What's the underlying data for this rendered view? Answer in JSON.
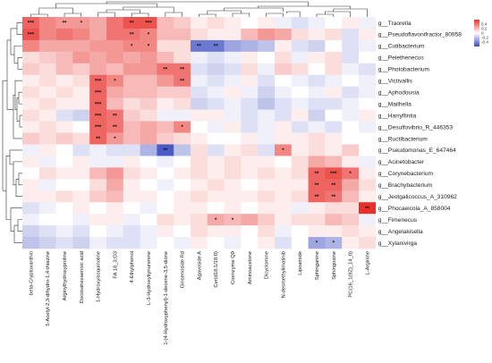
{
  "chart_data": {
    "type": "heatmap",
    "title": "",
    "xlabel": "",
    "ylabel": "",
    "rows": [
      "g__Traorella",
      "g__Pseudoflavonifractor_80958",
      "g__Cutibacterium",
      "g__Pelethenecus",
      "g__Photobacterium",
      "g__Victivallis",
      "g__Aphodousia",
      "g__Mailhella",
      "g__Harryflintia",
      "g__Desulfovibrio_R_446353",
      "g__Ructibacterium",
      "g__Pseudomonas_E_647464",
      "g__Acinetobacter",
      "g__Corynebacterium",
      "g__Brachybacterium",
      "g__Jeotgalicoccus_A_310962",
      "g__Phocaeicola_A_858004",
      "g__Fimenecus",
      "g__Angelakisella",
      "g__Xylanivirga"
    ],
    "columns": [
      "beta-Cryptoxanthin",
      "5-Acetyl-2,3-dihydro-1,4-thiazine",
      "Arginylhydroxyproline",
      "Docosahexaenoic acid",
      "1-Hydroxyisoquinoline",
      "FA 18_3;O3",
      "4-Ethylphenol",
      "L-3-Hydroxykynurenine",
      "1-(4-Hydroxyphenyl)-1-decene-3,5-dione",
      "Ginsenoside Rd",
      "Agavoside A",
      "Cer(d18:1/18:0)",
      "Coenzyme Q9",
      "Aminoacetone",
      "Dicyclomine",
      "N-desmethylimatinib",
      "Lipoamide",
      "Sphinganine",
      "Sphingosine",
      "PC(16_1(9Z)_14_0)",
      "L-Arginine"
    ],
    "values": [
      [
        0.45,
        0.35,
        0.3,
        0.3,
        0.25,
        0.4,
        0.5,
        0.5,
        0.2,
        0.15,
        0.05,
        0.1,
        0.05,
        0.0,
        0.05,
        -0.05,
        -0.1,
        -0.05,
        0.0,
        0.05,
        -0.05
      ],
      [
        0.5,
        0.35,
        0.4,
        0.35,
        0.25,
        0.4,
        0.4,
        0.35,
        0.2,
        0.2,
        0.1,
        0.05,
        0.05,
        0.2,
        0.3,
        0.25,
        0.1,
        0.05,
        0.1,
        -0.1,
        0.05
      ],
      [
        0.35,
        0.25,
        0.25,
        0.25,
        0.3,
        0.3,
        0.35,
        0.35,
        0.1,
        0.1,
        -0.45,
        -0.45,
        -0.3,
        -0.25,
        -0.2,
        0.05,
        -0.1,
        -0.15,
        0.0,
        -0.1,
        -0.05
      ],
      [
        0.1,
        0.15,
        0.2,
        0.3,
        0.25,
        0.3,
        0.25,
        0.3,
        0.2,
        0.1,
        -0.05,
        -0.1,
        -0.05,
        0.05,
        0.0,
        0.1,
        -0.05,
        0.05,
        0.1,
        -0.1,
        0.0
      ],
      [
        0.15,
        0.1,
        0.2,
        0.15,
        0.25,
        0.2,
        0.3,
        0.3,
        0.4,
        0.4,
        -0.1,
        -0.15,
        -0.1,
        0.1,
        -0.05,
        0.15,
        0.1,
        0.0,
        0.1,
        -0.05,
        -0.1
      ],
      [
        0.05,
        0.1,
        0.05,
        0.1,
        0.45,
        0.35,
        0.2,
        0.2,
        0.3,
        0.4,
        -0.05,
        -0.1,
        -0.05,
        0.05,
        -0.1,
        0.0,
        -0.05,
        -0.1,
        -0.05,
        0.0,
        -0.05
      ],
      [
        0.1,
        0.05,
        0.1,
        0.05,
        0.45,
        0.25,
        0.2,
        0.2,
        0.15,
        0.15,
        -0.1,
        -0.05,
        0.05,
        -0.05,
        -0.15,
        -0.05,
        0.0,
        -0.05,
        0.05,
        -0.1,
        -0.05
      ],
      [
        0.05,
        0.1,
        0.05,
        0.05,
        0.45,
        0.2,
        0.1,
        0.15,
        0.05,
        0.1,
        -0.15,
        -0.1,
        -0.05,
        -0.1,
        -0.2,
        -0.1,
        -0.05,
        -0.1,
        -0.1,
        -0.05,
        0.0
      ],
      [
        0.1,
        0.05,
        -0.1,
        -0.15,
        0.45,
        0.4,
        0.15,
        0.1,
        -0.05,
        -0.05,
        0.05,
        0.05,
        -0.05,
        -0.1,
        -0.05,
        -0.1,
        0.05,
        -0.15,
        0.0,
        -0.05,
        0.05
      ],
      [
        0.05,
        0.1,
        0.05,
        0.0,
        0.45,
        0.4,
        0.2,
        0.25,
        0.2,
        0.35,
        0.0,
        -0.05,
        0.05,
        -0.1,
        -0.05,
        0.05,
        -0.1,
        -0.05,
        -0.1,
        0.0,
        -0.05
      ],
      [
        0.15,
        0.1,
        0.15,
        0.1,
        0.45,
        0.3,
        0.2,
        0.25,
        0.15,
        0.1,
        0.05,
        0.0,
        0.0,
        0.05,
        -0.05,
        0.05,
        0.05,
        0.1,
        0.05,
        0.0,
        0.0
      ],
      [
        -0.05,
        0.05,
        0.0,
        -0.1,
        -0.05,
        -0.1,
        -0.1,
        -0.25,
        -0.55,
        -0.2,
        0.1,
        -0.1,
        0.05,
        0.1,
        -0.1,
        0.35,
        0.05,
        0.1,
        0.05,
        0.15,
        0.0
      ],
      [
        0.05,
        -0.05,
        0.0,
        0.05,
        -0.05,
        -0.05,
        0.05,
        0.0,
        -0.05,
        0.0,
        0.1,
        0.05,
        0.1,
        0.05,
        0.05,
        0.0,
        0.1,
        0.25,
        0.2,
        0.05,
        -0.05
      ],
      [
        0.0,
        0.1,
        0.05,
        0.05,
        0.2,
        0.3,
        0.1,
        0.05,
        0.0,
        0.05,
        0.1,
        0.05,
        0.1,
        0.05,
        0.1,
        0.05,
        0.1,
        0.45,
        0.5,
        0.4,
        0.05
      ],
      [
        0.05,
        -0.05,
        0.0,
        0.0,
        0.1,
        0.25,
        0.05,
        0.0,
        -0.05,
        0.0,
        0.05,
        0.1,
        0.05,
        0.0,
        0.05,
        0.05,
        0.05,
        0.45,
        0.45,
        0.25,
        0.1
      ],
      [
        0.05,
        0.05,
        0.1,
        0.05,
        0.15,
        0.2,
        0.05,
        0.05,
        0.0,
        0.05,
        0.1,
        0.05,
        0.05,
        0.05,
        0.1,
        0.05,
        0.1,
        0.45,
        0.4,
        0.2,
        0.05
      ],
      [
        -0.1,
        -0.05,
        0.0,
        0.05,
        0.0,
        0.05,
        0.0,
        -0.05,
        0.0,
        0.05,
        0.05,
        0.0,
        0.05,
        0.0,
        0.05,
        0.05,
        -0.05,
        0.05,
        0.1,
        0.1,
        0.6
      ],
      [
        -0.05,
        0.0,
        0.0,
        -0.05,
        0.05,
        0.05,
        -0.05,
        0.0,
        0.1,
        0.05,
        0.1,
        0.25,
        0.2,
        0.25,
        0.15,
        0.05,
        0.1,
        0.1,
        0.2,
        0.15,
        -0.05
      ],
      [
        -0.15,
        -0.1,
        -0.05,
        -0.1,
        0.0,
        -0.05,
        -0.1,
        -0.05,
        0.05,
        0.0,
        0.1,
        0.05,
        0.05,
        0.0,
        0.1,
        -0.05,
        0.0,
        0.05,
        0.05,
        0.1,
        0.05
      ],
      [
        -0.2,
        -0.15,
        -0.1,
        -0.15,
        -0.05,
        -0.1,
        -0.1,
        -0.05,
        0.0,
        -0.05,
        0.05,
        0.0,
        -0.05,
        0.0,
        0.05,
        -0.1,
        0.0,
        -0.3,
        -0.25,
        0.05,
        0.1
      ]
    ],
    "significance": [
      [
        "***",
        "",
        "**",
        "*",
        "",
        "",
        "**",
        "***",
        "",
        "",
        "",
        "",
        "",
        "",
        "",
        "",
        "",
        "",
        "",
        "",
        ""
      ],
      [
        "***",
        "",
        "",
        "",
        "",
        "",
        "**",
        "*",
        "",
        "",
        "",
        "",
        "",
        "",
        "",
        "",
        "",
        "",
        "",
        "",
        ""
      ],
      [
        "",
        "",
        "",
        "",
        "",
        "",
        "*",
        "*",
        "",
        "",
        "**",
        "**",
        "",
        "",
        "",
        "",
        "",
        "",
        "",
        "",
        ""
      ],
      [
        "",
        "",
        "",
        "",
        "",
        "",
        "",
        "",
        "",
        "",
        "",
        "",
        "",
        "",
        "",
        "",
        "",
        "",
        "",
        "",
        ""
      ],
      [
        "",
        "",
        "",
        "",
        "",
        "",
        "",
        "",
        "**",
        "**",
        "",
        "",
        "",
        "",
        "",
        "",
        "",
        "",
        "",
        "",
        ""
      ],
      [
        "",
        "",
        "",
        "",
        "***",
        "*",
        "",
        "",
        "",
        "**",
        "",
        "",
        "",
        "",
        "",
        "",
        "",
        "",
        "",
        "",
        ""
      ],
      [
        "",
        "",
        "",
        "",
        "***",
        "",
        "",
        "",
        "",
        "",
        "",
        "",
        "",
        "",
        "",
        "",
        "",
        "",
        "",
        "",
        ""
      ],
      [
        "",
        "",
        "",
        "",
        "***",
        "",
        "",
        "",
        "",
        "",
        "",
        "",
        "",
        "",
        "",
        "",
        "",
        "",
        "",
        "",
        ""
      ],
      [
        "",
        "",
        "",
        "",
        "***",
        "**",
        "",
        "",
        "",
        "",
        "",
        "",
        "",
        "",
        "",
        "",
        "",
        "",
        "",
        "",
        ""
      ],
      [
        "",
        "",
        "",
        "",
        "***",
        "**",
        "",
        "",
        "",
        "*",
        "",
        "",
        "",
        "",
        "",
        "",
        "",
        "",
        "",
        "",
        ""
      ],
      [
        "",
        "",
        "",
        "",
        "**",
        "*",
        "",
        "",
        "",
        "",
        "",
        "",
        "",
        "",
        "",
        "",
        "",
        "",
        "",
        "",
        ""
      ],
      [
        "",
        "",
        "",
        "",
        "",
        "",
        "",
        "",
        "**",
        "",
        "",
        "",
        "",
        "",
        "",
        "*",
        "",
        "",
        "",
        "",
        ""
      ],
      [
        "",
        "",
        "",
        "",
        "",
        "",
        "",
        "",
        "",
        "",
        "",
        "",
        "",
        "",
        "",
        "",
        "",
        "",
        "",
        "",
        ""
      ],
      [
        "",
        "",
        "",
        "",
        "",
        "",
        "",
        "",
        "",
        "",
        "",
        "",
        "",
        "",
        "",
        "",
        "",
        "**",
        "***",
        "*",
        ""
      ],
      [
        "",
        "",
        "",
        "",
        "",
        "",
        "",
        "",
        "",
        "",
        "",
        "",
        "",
        "",
        "",
        "",
        "",
        "**",
        "**",
        "",
        ""
      ],
      [
        "",
        "",
        "",
        "",
        "",
        "",
        "",
        "",
        "",
        "",
        "",
        "",
        "",
        "",
        "",
        "",
        "",
        "**",
        "**",
        "",
        ""
      ],
      [
        "",
        "",
        "",
        "",
        "",
        "",
        "",
        "",
        "",
        "",
        "",
        "",
        "",
        "",
        "",
        "",
        "",
        "",
        "",
        "",
        "**"
      ],
      [
        "",
        "",
        "",
        "",
        "",
        "",
        "",
        "",
        "",
        "",
        "",
        "*",
        "*",
        "",
        "",
        "",
        "",
        "",
        "",
        "",
        ""
      ],
      [
        "",
        "",
        "",
        "",
        "",
        "",
        "",
        "",
        "",
        "",
        "",
        "",
        "",
        "",
        "",
        "",
        "",
        "",
        "",
        "",
        ""
      ],
      [
        "",
        "",
        "",
        "",
        "",
        "",
        "",
        "",
        "",
        "",
        "",
        "",
        "",
        "",
        "",
        "",
        "",
        "*",
        "*",
        "",
        ""
      ]
    ],
    "colorscale": {
      "min": -0.6,
      "max": 0.6,
      "low": "#3b4cc0",
      "mid": "#ffffff",
      "high": "#e8302b"
    },
    "legend": {
      "ticks": [
        "0.4",
        "0.2",
        "0",
        "-0.2",
        "-0.4"
      ],
      "tick_values": [
        0.4,
        0.2,
        0,
        -0.2,
        -0.4
      ],
      "placement": "top-right"
    }
  }
}
